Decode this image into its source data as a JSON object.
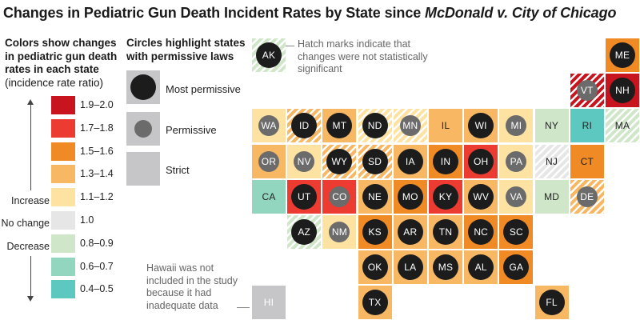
{
  "title_plain": "Changes in Pediatric Gun Death Incident Rates by State since ",
  "title_italic": "McDonald v. City of Chicago",
  "legend": {
    "heading_bold": "Colors show changes in pediatric gun death rates in each state",
    "heading_sub": "(incidence rate ratio)",
    "bins": [
      {
        "label": "1.9–2.0",
        "color": "#c8141e"
      },
      {
        "label": "1.7–1.8",
        "color": "#ec3b31"
      },
      {
        "label": "1.5–1.6",
        "color": "#f08a24"
      },
      {
        "label": "1.3–1.4",
        "color": "#f8b763"
      },
      {
        "label": "1.1–1.2",
        "color": "#fde2a2"
      },
      {
        "label": "1.0",
        "color": "#e6e6e6"
      },
      {
        "label": "0.8–0.9",
        "color": "#cfe7c8"
      },
      {
        "label": "0.6–0.7",
        "color": "#92d6c0"
      },
      {
        "label": "0.4–0.5",
        "color": "#5cc8bf"
      }
    ],
    "side_labels": {
      "increase": "Increase",
      "no_change": "No change",
      "decrease": "Decrease"
    }
  },
  "circle_legend": {
    "heading": "Circles highlight states with permissive laws",
    "items": [
      {
        "label": "Most permissive",
        "level": "most"
      },
      {
        "label": "Permissive",
        "level": "permissive"
      },
      {
        "label": "Strict",
        "level": "strict"
      }
    ]
  },
  "notes": {
    "hatch": "Hatch marks indicate that changes were not statistically significant",
    "hawaii": "Hawaii was not included in the study because it had inadequate data"
  },
  "colors": {
    "most_circle": "#1c1c1c",
    "perm_circle": "#6b6b6b",
    "strict_box": "#c6c6c8",
    "hatch_stripe": "#ffffff"
  },
  "chart_data": {
    "type": "heatmap",
    "title": "Changes in Pediatric Gun Death Incident Rates by State since McDonald v. City of Chicago",
    "legend_title": "Colors show changes in pediatric gun death rates in each state (incidence rate ratio)",
    "states": [
      {
        "abbr": "AK",
        "bin": "0.8–0.9",
        "law": "most",
        "significant": false,
        "col": 0,
        "row": 0
      },
      {
        "abbr": "ME",
        "bin": "1.5–1.6",
        "law": "most",
        "significant": true,
        "col": 10,
        "row": 0
      },
      {
        "abbr": "VT",
        "bin": "1.9–2.0",
        "law": "permissive",
        "significant": false,
        "col": 9,
        "row": 1
      },
      {
        "abbr": "NH",
        "bin": "1.9–2.0",
        "law": "most",
        "significant": true,
        "col": 10,
        "row": 1
      },
      {
        "abbr": "WA",
        "bin": "1.1–1.2",
        "law": "permissive",
        "significant": true,
        "col": 0,
        "row": 2
      },
      {
        "abbr": "ID",
        "bin": "1.3–1.4",
        "law": "most",
        "significant": false,
        "col": 1,
        "row": 2
      },
      {
        "abbr": "MT",
        "bin": "1.3–1.4",
        "law": "most",
        "significant": true,
        "col": 2,
        "row": 2
      },
      {
        "abbr": "ND",
        "bin": "1.1–1.2",
        "law": "most",
        "significant": false,
        "col": 3,
        "row": 2
      },
      {
        "abbr": "MN",
        "bin": "1.1–1.2",
        "law": "permissive",
        "significant": false,
        "col": 4,
        "row": 2
      },
      {
        "abbr": "IL",
        "bin": "1.3–1.4",
        "law": "strict",
        "significant": true,
        "col": 5,
        "row": 2
      },
      {
        "abbr": "WI",
        "bin": "1.3–1.4",
        "law": "most",
        "significant": true,
        "col": 6,
        "row": 2
      },
      {
        "abbr": "MI",
        "bin": "1.1–1.2",
        "law": "permissive",
        "significant": true,
        "col": 7,
        "row": 2
      },
      {
        "abbr": "NY",
        "bin": "0.8–0.9",
        "law": "strict",
        "significant": true,
        "col": 8,
        "row": 2
      },
      {
        "abbr": "RI",
        "bin": "0.4–0.5",
        "law": "strict",
        "significant": true,
        "col": 9,
        "row": 2
      },
      {
        "abbr": "MA",
        "bin": "0.8–0.9",
        "law": "strict",
        "significant": false,
        "col": 10,
        "row": 2
      },
      {
        "abbr": "OR",
        "bin": "1.3–1.4",
        "law": "permissive",
        "significant": true,
        "col": 0,
        "row": 3
      },
      {
        "abbr": "NV",
        "bin": "1.1–1.2",
        "law": "permissive",
        "significant": true,
        "col": 1,
        "row": 3
      },
      {
        "abbr": "WY",
        "bin": "1.3–1.4",
        "law": "most",
        "significant": false,
        "col": 2,
        "row": 3
      },
      {
        "abbr": "SD",
        "bin": "1.3–1.4",
        "law": "most",
        "significant": false,
        "col": 3,
        "row": 3
      },
      {
        "abbr": "IA",
        "bin": "1.3–1.4",
        "law": "most",
        "significant": true,
        "col": 4,
        "row": 3
      },
      {
        "abbr": "IN",
        "bin": "1.5–1.6",
        "law": "most",
        "significant": true,
        "col": 5,
        "row": 3
      },
      {
        "abbr": "OH",
        "bin": "1.7–1.8",
        "law": "most",
        "significant": true,
        "col": 6,
        "row": 3
      },
      {
        "abbr": "PA",
        "bin": "1.1–1.2",
        "law": "permissive",
        "significant": true,
        "col": 7,
        "row": 3
      },
      {
        "abbr": "NJ",
        "bin": "1.0",
        "law": "strict",
        "significant": false,
        "col": 8,
        "row": 3
      },
      {
        "abbr": "CT",
        "bin": "1.5–1.6",
        "law": "strict",
        "significant": true,
        "col": 9,
        "row": 3
      },
      {
        "abbr": "CA",
        "bin": "0.6–0.7",
        "law": "strict",
        "significant": true,
        "col": 0,
        "row": 4
      },
      {
        "abbr": "UT",
        "bin": "1.7–1.8",
        "law": "most",
        "significant": true,
        "col": 1,
        "row": 4
      },
      {
        "abbr": "CO",
        "bin": "1.7–1.8",
        "law": "permissive",
        "significant": true,
        "col": 2,
        "row": 4
      },
      {
        "abbr": "NE",
        "bin": "1.3–1.4",
        "law": "most",
        "significant": true,
        "col": 3,
        "row": 4
      },
      {
        "abbr": "MO",
        "bin": "1.5–1.6",
        "law": "most",
        "significant": true,
        "col": 4,
        "row": 4
      },
      {
        "abbr": "KY",
        "bin": "1.7–1.8",
        "law": "most",
        "significant": true,
        "col": 5,
        "row": 4
      },
      {
        "abbr": "WV",
        "bin": "1.3–1.4",
        "law": "most",
        "significant": true,
        "col": 6,
        "row": 4
      },
      {
        "abbr": "VA",
        "bin": "1.1–1.2",
        "law": "permissive",
        "significant": true,
        "col": 7,
        "row": 4
      },
      {
        "abbr": "MD",
        "bin": "0.8–0.9",
        "law": "strict",
        "significant": true,
        "col": 8,
        "row": 4
      },
      {
        "abbr": "DE",
        "bin": "1.3–1.4",
        "law": "permissive",
        "significant": false,
        "col": 9,
        "row": 4
      },
      {
        "abbr": "AZ",
        "bin": "0.8–0.9",
        "law": "most",
        "significant": false,
        "col": 1,
        "row": 5
      },
      {
        "abbr": "NM",
        "bin": "1.1–1.2",
        "law": "permissive",
        "significant": true,
        "col": 2,
        "row": 5
      },
      {
        "abbr": "KS",
        "bin": "1.5–1.6",
        "law": "most",
        "significant": true,
        "col": 3,
        "row": 5
      },
      {
        "abbr": "AR",
        "bin": "1.3–1.4",
        "law": "most",
        "significant": true,
        "col": 4,
        "row": 5
      },
      {
        "abbr": "TN",
        "bin": "1.3–1.4",
        "law": "most",
        "significant": true,
        "col": 5,
        "row": 5
      },
      {
        "abbr": "NC",
        "bin": "1.5–1.6",
        "law": "most",
        "significant": true,
        "col": 6,
        "row": 5
      },
      {
        "abbr": "SC",
        "bin": "1.5–1.6",
        "law": "most",
        "significant": true,
        "col": 7,
        "row": 5
      },
      {
        "abbr": "OK",
        "bin": "1.3–1.4",
        "law": "most",
        "significant": true,
        "col": 3,
        "row": 6
      },
      {
        "abbr": "LA",
        "bin": "1.3–1.4",
        "law": "most",
        "significant": true,
        "col": 4,
        "row": 6
      },
      {
        "abbr": "MS",
        "bin": "1.3–1.4",
        "law": "most",
        "significant": true,
        "col": 5,
        "row": 6
      },
      {
        "abbr": "AL",
        "bin": "1.3–1.4",
        "law": "most",
        "significant": true,
        "col": 6,
        "row": 6
      },
      {
        "abbr": "GA",
        "bin": "1.5–1.6",
        "law": "most",
        "significant": true,
        "col": 7,
        "row": 6
      },
      {
        "abbr": "HI",
        "bin": "no data",
        "law": "strict",
        "significant": true,
        "col": 0,
        "row": 7
      },
      {
        "abbr": "TX",
        "bin": "1.3–1.4",
        "law": "most",
        "significant": true,
        "col": 3,
        "row": 7
      },
      {
        "abbr": "FL",
        "bin": "1.3–1.4",
        "law": "most",
        "significant": true,
        "col": 8,
        "row": 7
      }
    ]
  }
}
